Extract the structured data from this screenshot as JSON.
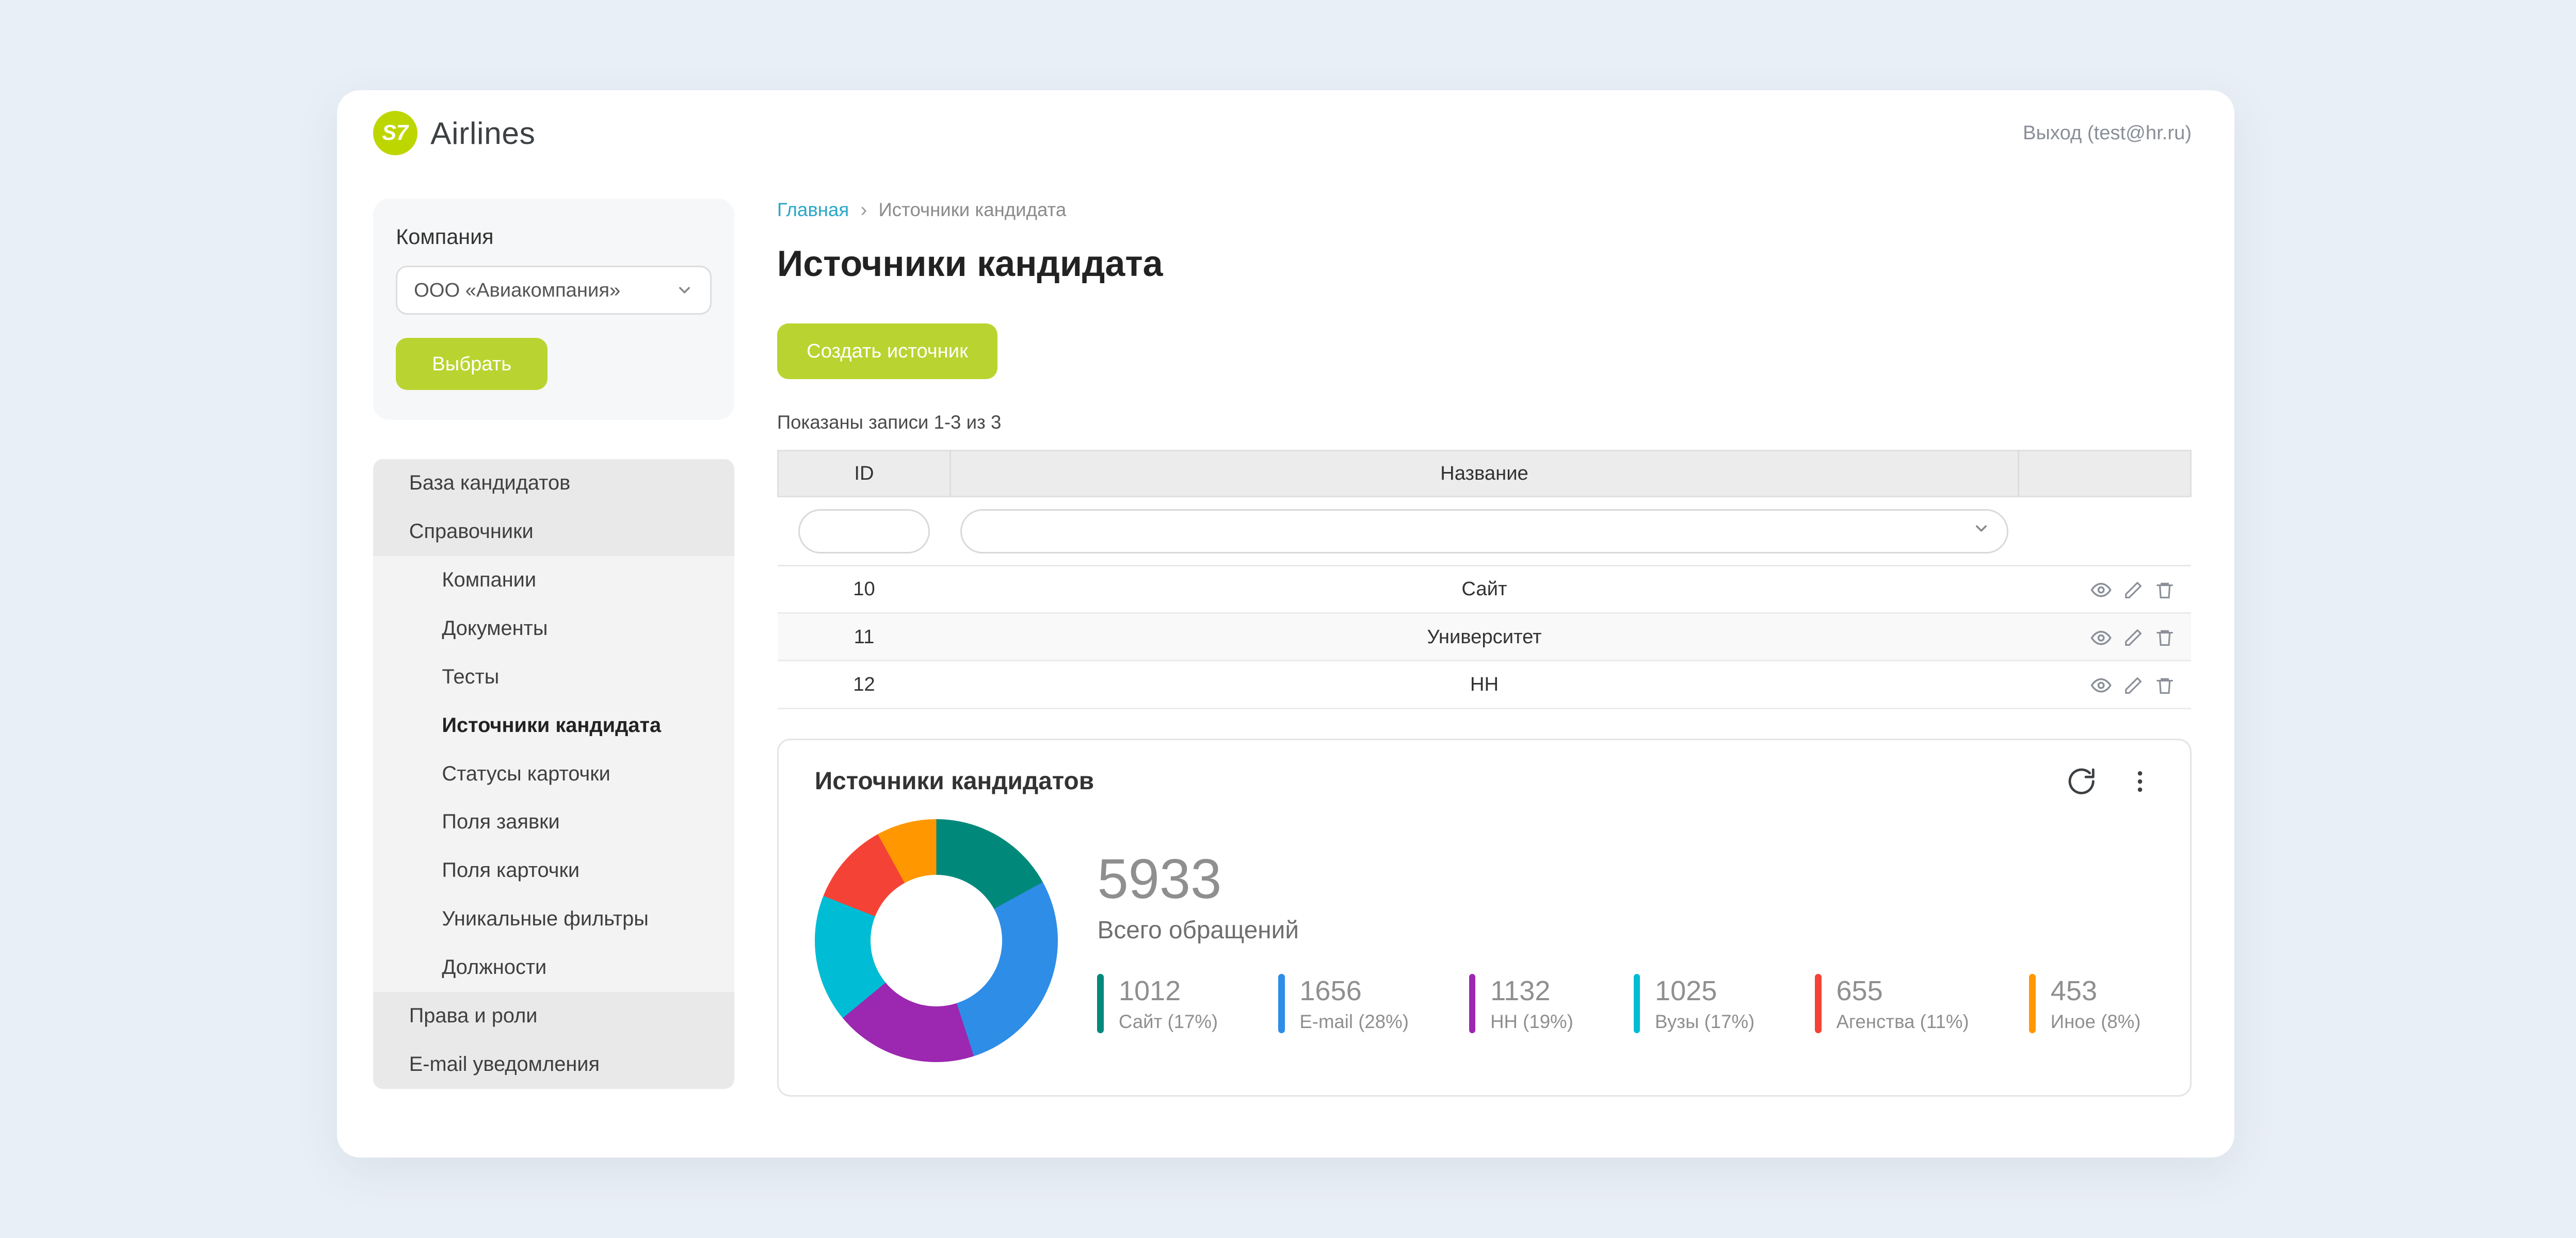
{
  "colors": {
    "brand_lime": "#b9d430",
    "logo_lime": "#bed600",
    "link_teal": "#2aa7c7"
  },
  "header": {
    "brand": {
      "logo_text": "S7",
      "name": "Airlines"
    },
    "logout": "Выход (test@hr.ru)"
  },
  "sidebar": {
    "company_label": "Компания",
    "company_select": "ООО «Авиакомпания»",
    "select_button": "Выбрать",
    "menu": [
      {
        "name": "candidate-base",
        "label": "База кандидатов",
        "type": "top",
        "active": false
      },
      {
        "name": "directories",
        "label": "Справочники",
        "type": "top",
        "active": false
      },
      {
        "name": "companies",
        "label": "Компании",
        "type": "sub",
        "active": false
      },
      {
        "name": "documents",
        "label": "Документы",
        "type": "sub",
        "active": false
      },
      {
        "name": "tests",
        "label": "Тесты",
        "type": "sub",
        "active": false
      },
      {
        "name": "candidate-sources",
        "label": "Источники кандидата",
        "type": "sub",
        "active": true
      },
      {
        "name": "card-statuses",
        "label": "Статусы карточки",
        "type": "sub",
        "active": false
      },
      {
        "name": "application-fields",
        "label": "Поля заявки",
        "type": "sub",
        "active": false
      },
      {
        "name": "card-fields",
        "label": "Поля карточки",
        "type": "sub",
        "active": false
      },
      {
        "name": "unique-filters",
        "label": "Уникальные фильтры",
        "type": "sub",
        "active": false
      },
      {
        "name": "positions",
        "label": "Должности",
        "type": "sub",
        "active": false
      },
      {
        "name": "rights-roles",
        "label": "Права и роли",
        "type": "top",
        "active": false
      },
      {
        "name": "email-notifications",
        "label": "E-mail уведомления",
        "type": "top",
        "active": false
      }
    ]
  },
  "main": {
    "breadcrumb": {
      "home": "Главная",
      "current": "Источники кандидата"
    },
    "title": "Источники кандидата",
    "create_button": "Создать источник",
    "summary": "Показаны записи 1-3 из 3",
    "table": {
      "columns": {
        "id": "ID",
        "name": "Название",
        "actions": ""
      },
      "filters": {
        "id_value": "",
        "name_value": ""
      },
      "row_actions": [
        "view",
        "edit",
        "delete"
      ],
      "rows": [
        {
          "id": "10",
          "name": "Сайт"
        },
        {
          "id": "11",
          "name": "Университет"
        },
        {
          "id": "12",
          "name": "HH"
        }
      ]
    },
    "widget": {
      "title": "Источники кандидатов",
      "total": "5933",
      "total_label": "Всего обращений"
    }
  },
  "chart_data": {
    "type": "pie",
    "subtype": "donut",
    "title": "Источники кандидатов",
    "total": 5933,
    "total_label": "Всего обращений",
    "legend_position": "right-bottom",
    "segments": [
      {
        "label": "Сайт",
        "value": 1012,
        "percent": 17,
        "color": "#00897b"
      },
      {
        "label": "E-mail",
        "value": 1656,
        "percent": 28,
        "color": "#2e8de6"
      },
      {
        "label": "HH",
        "value": 1132,
        "percent": 19,
        "color": "#9c27b0"
      },
      {
        "label": "Вузы",
        "value": 1025,
        "percent": 17,
        "color": "#00bcd4"
      },
      {
        "label": "Агенства",
        "value": 655,
        "percent": 11,
        "color": "#f44336"
      },
      {
        "label": "Иное",
        "value": 453,
        "percent": 8,
        "color": "#ff9800"
      }
    ]
  }
}
